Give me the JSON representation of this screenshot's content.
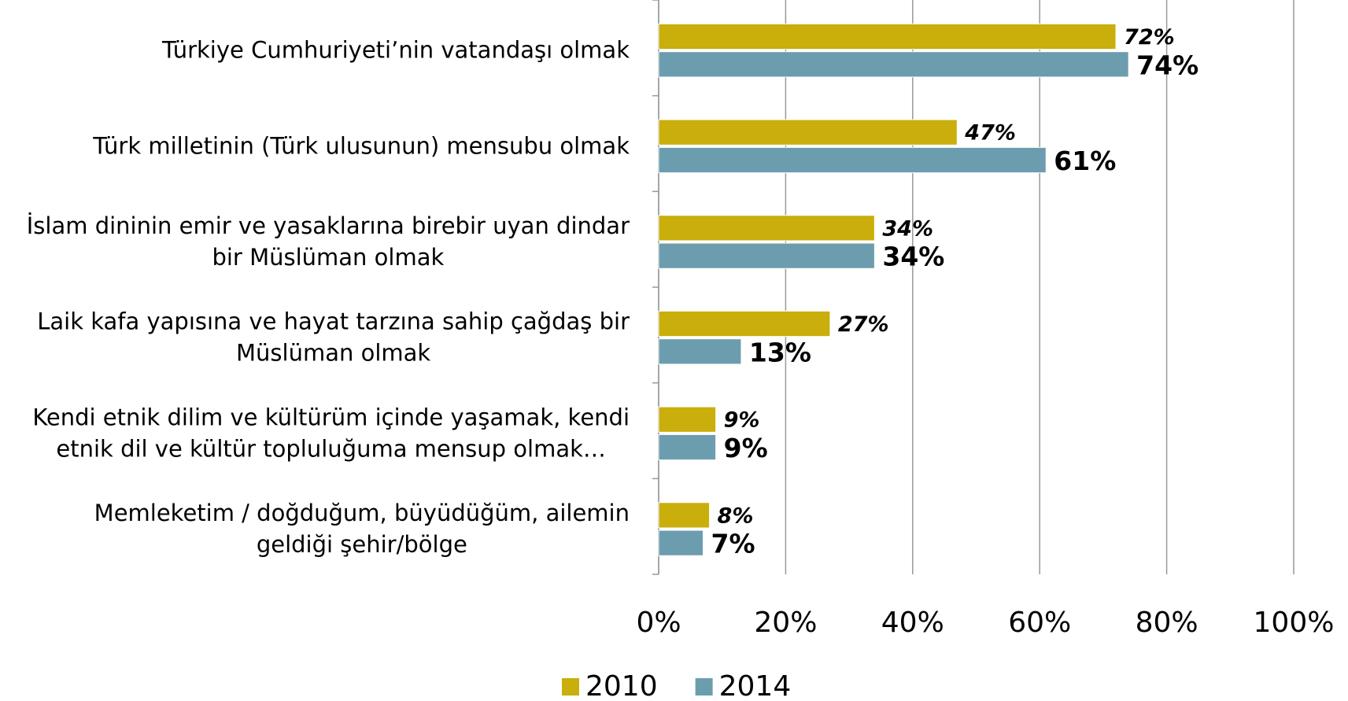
{
  "chart_data": {
    "type": "hbar",
    "categories": [
      [
        "Türkiye Cumhuriyeti’nin vatandaşı olmak"
      ],
      [
        "Türk milletinin (Türk ulusunun) mensubu olmak"
      ],
      [
        "İslam dininin emir ve yasaklarına birebir uyan dindar",
        "bir Müslüman olmak"
      ],
      [
        "Laik kafa yapısına ve hayat tarzına sahip çağdaş bir",
        "Müslüman olmak"
      ],
      [
        "Kendi etnik dilim ve kültürüm içinde yaşamak, kendi",
        "etnik dil ve kültür topluluğuma mensup olmak…"
      ],
      [
        "Memleketim / doğduğum, büyüdüğüm, ailemin",
        "geldiği şehir/bölge"
      ]
    ],
    "series": [
      {
        "name": "2010",
        "color": "#C9AE0C",
        "values": [
          72,
          47,
          34,
          27,
          9,
          8
        ],
        "value_labels": [
          "72%",
          "47%",
          "34%",
          "27%",
          "9%",
          "8%"
        ]
      },
      {
        "name": "2014",
        "color": "#6C9DAF",
        "values": [
          74,
          61,
          34,
          13,
          9,
          7
        ],
        "value_labels": [
          "74%",
          "61%",
          "34%",
          "13%",
          "9%",
          "7%"
        ]
      }
    ],
    "xlim": [
      0,
      100
    ],
    "xticks": [
      {
        "value": 0,
        "label": "0%"
      },
      {
        "value": 20,
        "label": "20%"
      },
      {
        "value": 40,
        "label": "40%"
      },
      {
        "value": 60,
        "label": "60%"
      },
      {
        "value": 80,
        "label": "80%"
      },
      {
        "value": 100,
        "label": "100%"
      }
    ],
    "grid": true,
    "legend": "bottom"
  }
}
